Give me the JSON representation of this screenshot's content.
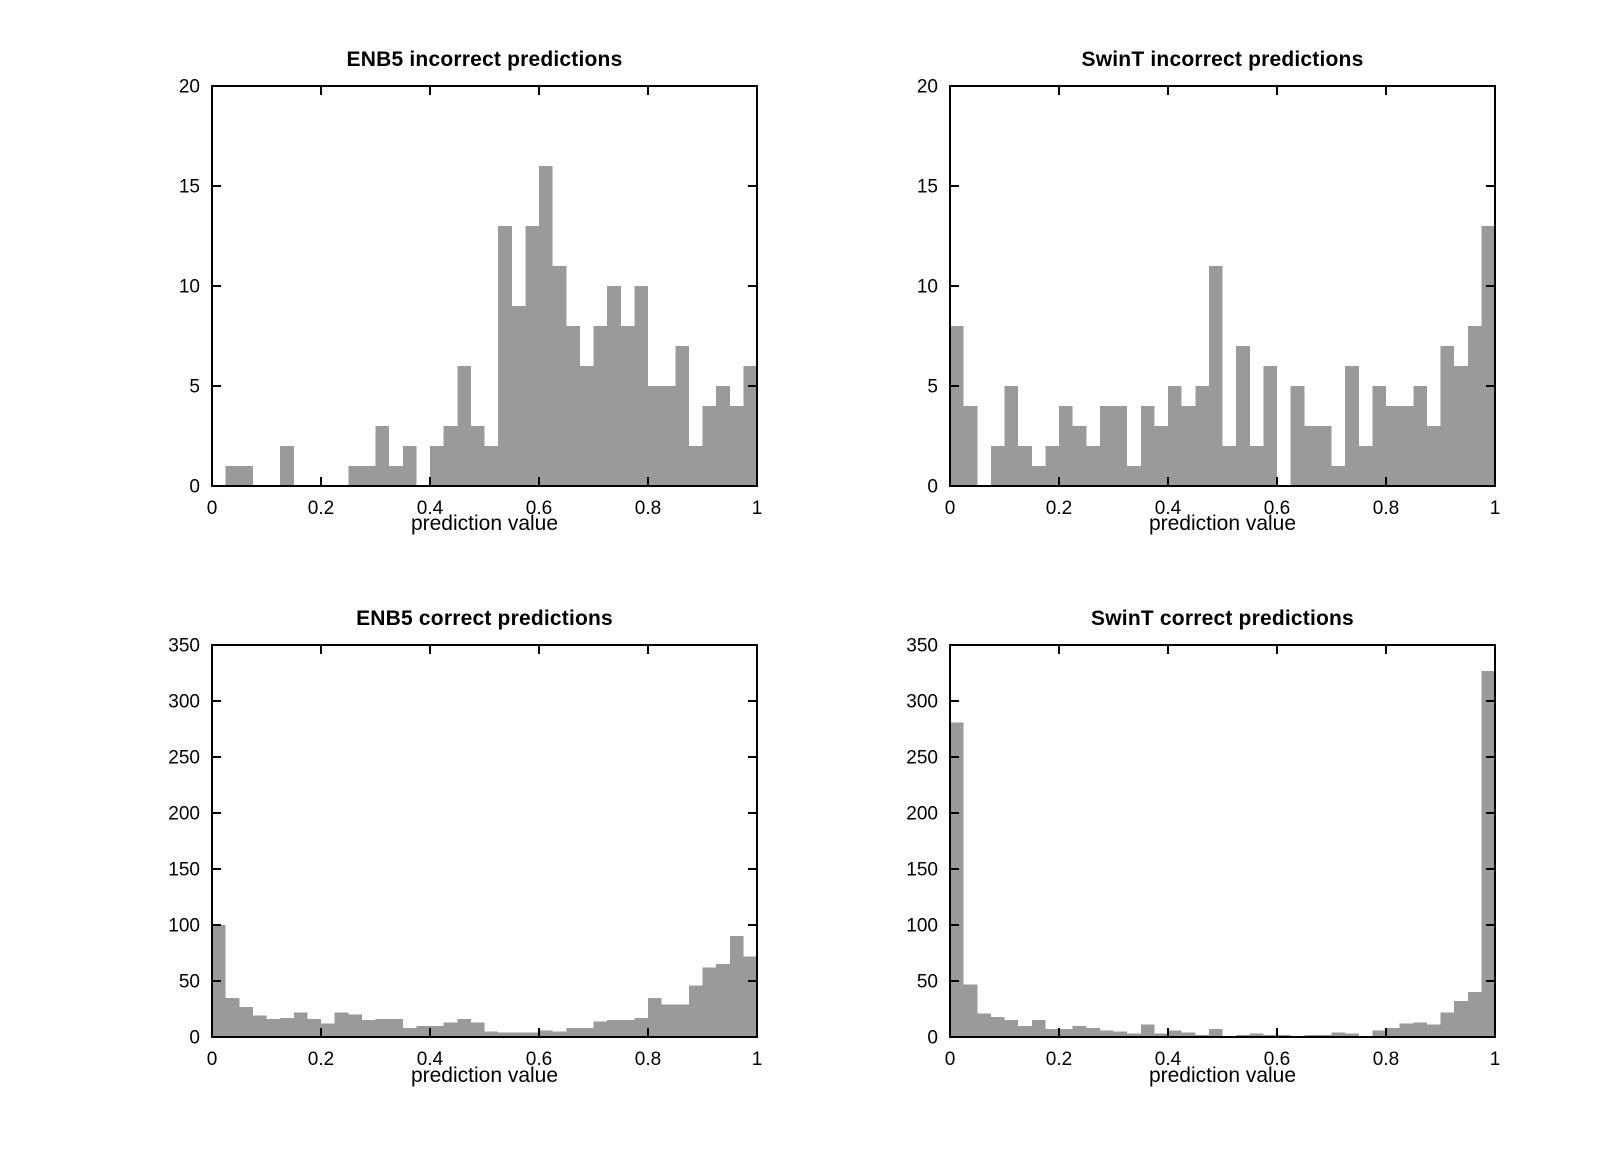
{
  "figure": {
    "background": "#ffffff",
    "bar_color": "#9a9a9a",
    "axis_color": "#000000",
    "text_color": "#000000"
  },
  "chart_data": [
    {
      "id": "enb5-incorrect",
      "type": "bar",
      "title": "ENB5 incorrect predictions",
      "xlabel": "prediction value",
      "ylabel": "",
      "xlim": [
        0,
        1
      ],
      "ylim": [
        0,
        20
      ],
      "xticks": [
        0,
        0.2,
        0.4,
        0.6,
        0.8,
        1
      ],
      "xtick_labels": [
        "0",
        "0.2",
        "0.4",
        "0.6",
        "0.8",
        "1"
      ],
      "yticks": [
        0,
        5,
        10,
        15,
        20
      ],
      "bin_start": 0,
      "bin_width": 0.025,
      "grid": false,
      "values": [
        0,
        1,
        1,
        0,
        0,
        2,
        0,
        0,
        0,
        0,
        1,
        1,
        3,
        1,
        2,
        0,
        2,
        3,
        6,
        3,
        2,
        13,
        9,
        13,
        16,
        11,
        8,
        6,
        8,
        10,
        8,
        10,
        5,
        5,
        7,
        2,
        4,
        5,
        4,
        6
      ]
    },
    {
      "id": "swint-incorrect",
      "type": "bar",
      "title": "SwinT incorrect predictions",
      "xlabel": "prediction value",
      "ylabel": "",
      "xlim": [
        0,
        1
      ],
      "ylim": [
        0,
        20
      ],
      "xticks": [
        0,
        0.2,
        0.4,
        0.6,
        0.8,
        1
      ],
      "xtick_labels": [
        "0",
        "0.2",
        "0.4",
        "0.6",
        "0.8",
        "1"
      ],
      "yticks": [
        0,
        5,
        10,
        15,
        20
      ],
      "bin_start": 0,
      "bin_width": 0.025,
      "grid": false,
      "values": [
        8,
        4,
        0,
        2,
        5,
        2,
        1,
        2,
        4,
        3,
        2,
        4,
        4,
        1,
        4,
        3,
        5,
        4,
        5,
        11,
        2,
        7,
        2,
        6,
        0,
        5,
        3,
        3,
        1,
        6,
        2,
        5,
        4,
        4,
        5,
        3,
        7,
        6,
        8,
        13
      ]
    },
    {
      "id": "enb5-correct",
      "type": "bar",
      "title": "ENB5 correct predictions",
      "xlabel": "prediction value",
      "ylabel": "",
      "xlim": [
        0,
        1
      ],
      "ylim": [
        0,
        350
      ],
      "xticks": [
        0,
        0.2,
        0.4,
        0.6,
        0.8,
        1
      ],
      "xtick_labels": [
        "0",
        "0.2",
        "0.4",
        "0.6",
        "0.8",
        "1"
      ],
      "yticks": [
        0,
        50,
        100,
        150,
        200,
        250,
        300,
        350
      ],
      "bin_start": 0,
      "bin_width": 0.025,
      "grid": false,
      "values": [
        100,
        35,
        27,
        19,
        16,
        17,
        22,
        16,
        12,
        22,
        20,
        15,
        16,
        16,
        8,
        10,
        10,
        13,
        16,
        13,
        5,
        4,
        4,
        4,
        6,
        5,
        8,
        8,
        14,
        15,
        15,
        17,
        35,
        29,
        29,
        46,
        62,
        65,
        90,
        72
      ]
    },
    {
      "id": "swint-correct",
      "type": "bar",
      "title": "SwinT correct predictions",
      "xlabel": "prediction value",
      "ylabel": "",
      "xlim": [
        0,
        1
      ],
      "ylim": [
        0,
        350
      ],
      "xticks": [
        0,
        0.2,
        0.4,
        0.6,
        0.8,
        1
      ],
      "xtick_labels": [
        "0",
        "0.2",
        "0.4",
        "0.6",
        "0.8",
        "1"
      ],
      "yticks": [
        0,
        50,
        100,
        150,
        200,
        250,
        300,
        350
      ],
      "bin_start": 0,
      "bin_width": 0.025,
      "grid": false,
      "values": [
        281,
        47,
        21,
        18,
        15,
        10,
        15,
        7,
        7,
        10,
        8,
        6,
        5,
        3,
        11,
        3,
        6,
        4,
        2,
        7,
        1,
        2,
        3,
        2,
        2,
        1,
        2,
        2,
        4,
        3,
        1,
        6,
        8,
        12,
        13,
        11,
        22,
        32,
        40,
        327
      ]
    }
  ]
}
